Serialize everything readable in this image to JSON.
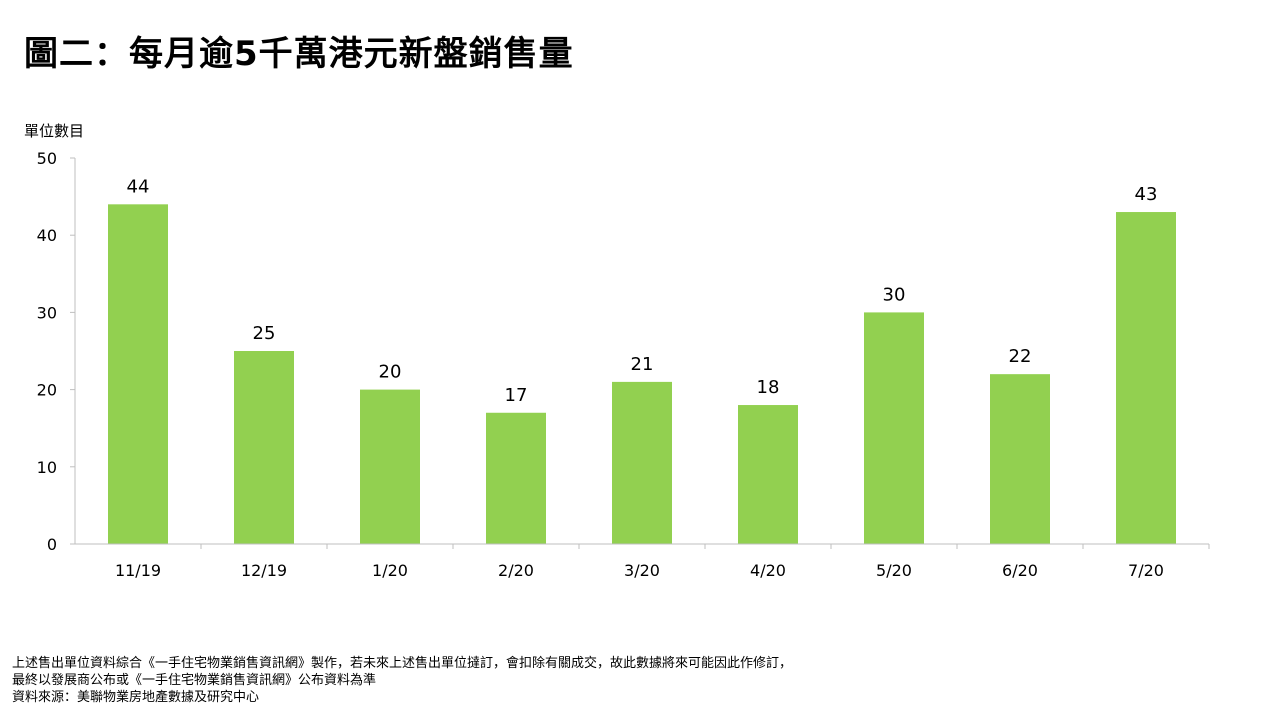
{
  "chart_data": {
    "type": "bar",
    "title": "圖二：每月逾5千萬港元新盤銷售量",
    "ylabel": "單位數目",
    "xlabel": "",
    "categories": [
      "11/19",
      "12/19",
      "1/20",
      "2/20",
      "3/20",
      "4/20",
      "5/20",
      "6/20",
      "7/20"
    ],
    "values": [
      44,
      25,
      20,
      17,
      21,
      18,
      30,
      22,
      43
    ],
    "ylim": [
      0,
      50
    ],
    "yticks": [
      "0",
      "10",
      "20",
      "30",
      "40",
      "50"
    ],
    "grid": false,
    "bar_color": "#92D050"
  },
  "footer": {
    "note_line1": "上述售出單位資料綜合《一手住宅物業銷售資訊網》製作，若未來上述售出單位撻訂，會扣除有關成交，故此數據將來可能因此作修訂，",
    "note_line2": "最終以發展商公布或《一手住宅物業銷售資訊網》公布資料為準",
    "source": "資料來源：美聯物業房地產數據及研究中心"
  }
}
